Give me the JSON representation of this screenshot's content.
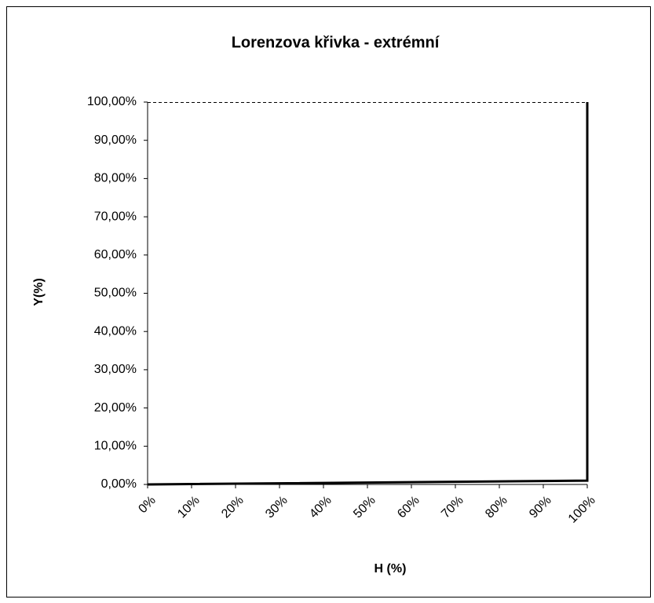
{
  "chart_data": {
    "type": "line",
    "title": "Lorenzova křivka - extrémní",
    "x_label": "H (%)",
    "y_label": "Y(%)",
    "x": [
      0,
      100,
      100
    ],
    "series": [
      {
        "color": "#000000",
        "values": [
          0,
          1,
          100
        ]
      }
    ],
    "xlim": [
      0,
      100
    ],
    "xticks": [
      {
        "value": 0,
        "label": "0%"
      },
      {
        "value": 10,
        "label": "10%"
      },
      {
        "value": 20,
        "label": "20%"
      },
      {
        "value": 30,
        "label": "30%"
      },
      {
        "value": 40,
        "label": "40%"
      },
      {
        "value": 50,
        "label": "50%"
      },
      {
        "value": 60,
        "label": "60%"
      },
      {
        "value": 70,
        "label": "70%"
      },
      {
        "value": 80,
        "label": "80%"
      },
      {
        "value": 90,
        "label": "90%"
      },
      {
        "value": 100,
        "label": "100%"
      }
    ],
    "ylim": [
      0,
      100
    ],
    "yticks": [
      {
        "value": 0,
        "label": "0,00%"
      },
      {
        "value": 10,
        "label": "10,00%"
      },
      {
        "value": 20,
        "label": "20,00%"
      },
      {
        "value": 30,
        "label": "30,00%"
      },
      {
        "value": 40,
        "label": "40,00%"
      },
      {
        "value": 50,
        "label": "50,00%"
      },
      {
        "value": 60,
        "label": "60,00%"
      },
      {
        "value": 70,
        "label": "70,00%"
      },
      {
        "value": 80,
        "label": "80,00%"
      },
      {
        "value": 90,
        "label": "90,00%"
      },
      {
        "value": 100,
        "label": "100,00%"
      }
    ],
    "grid": false
  }
}
